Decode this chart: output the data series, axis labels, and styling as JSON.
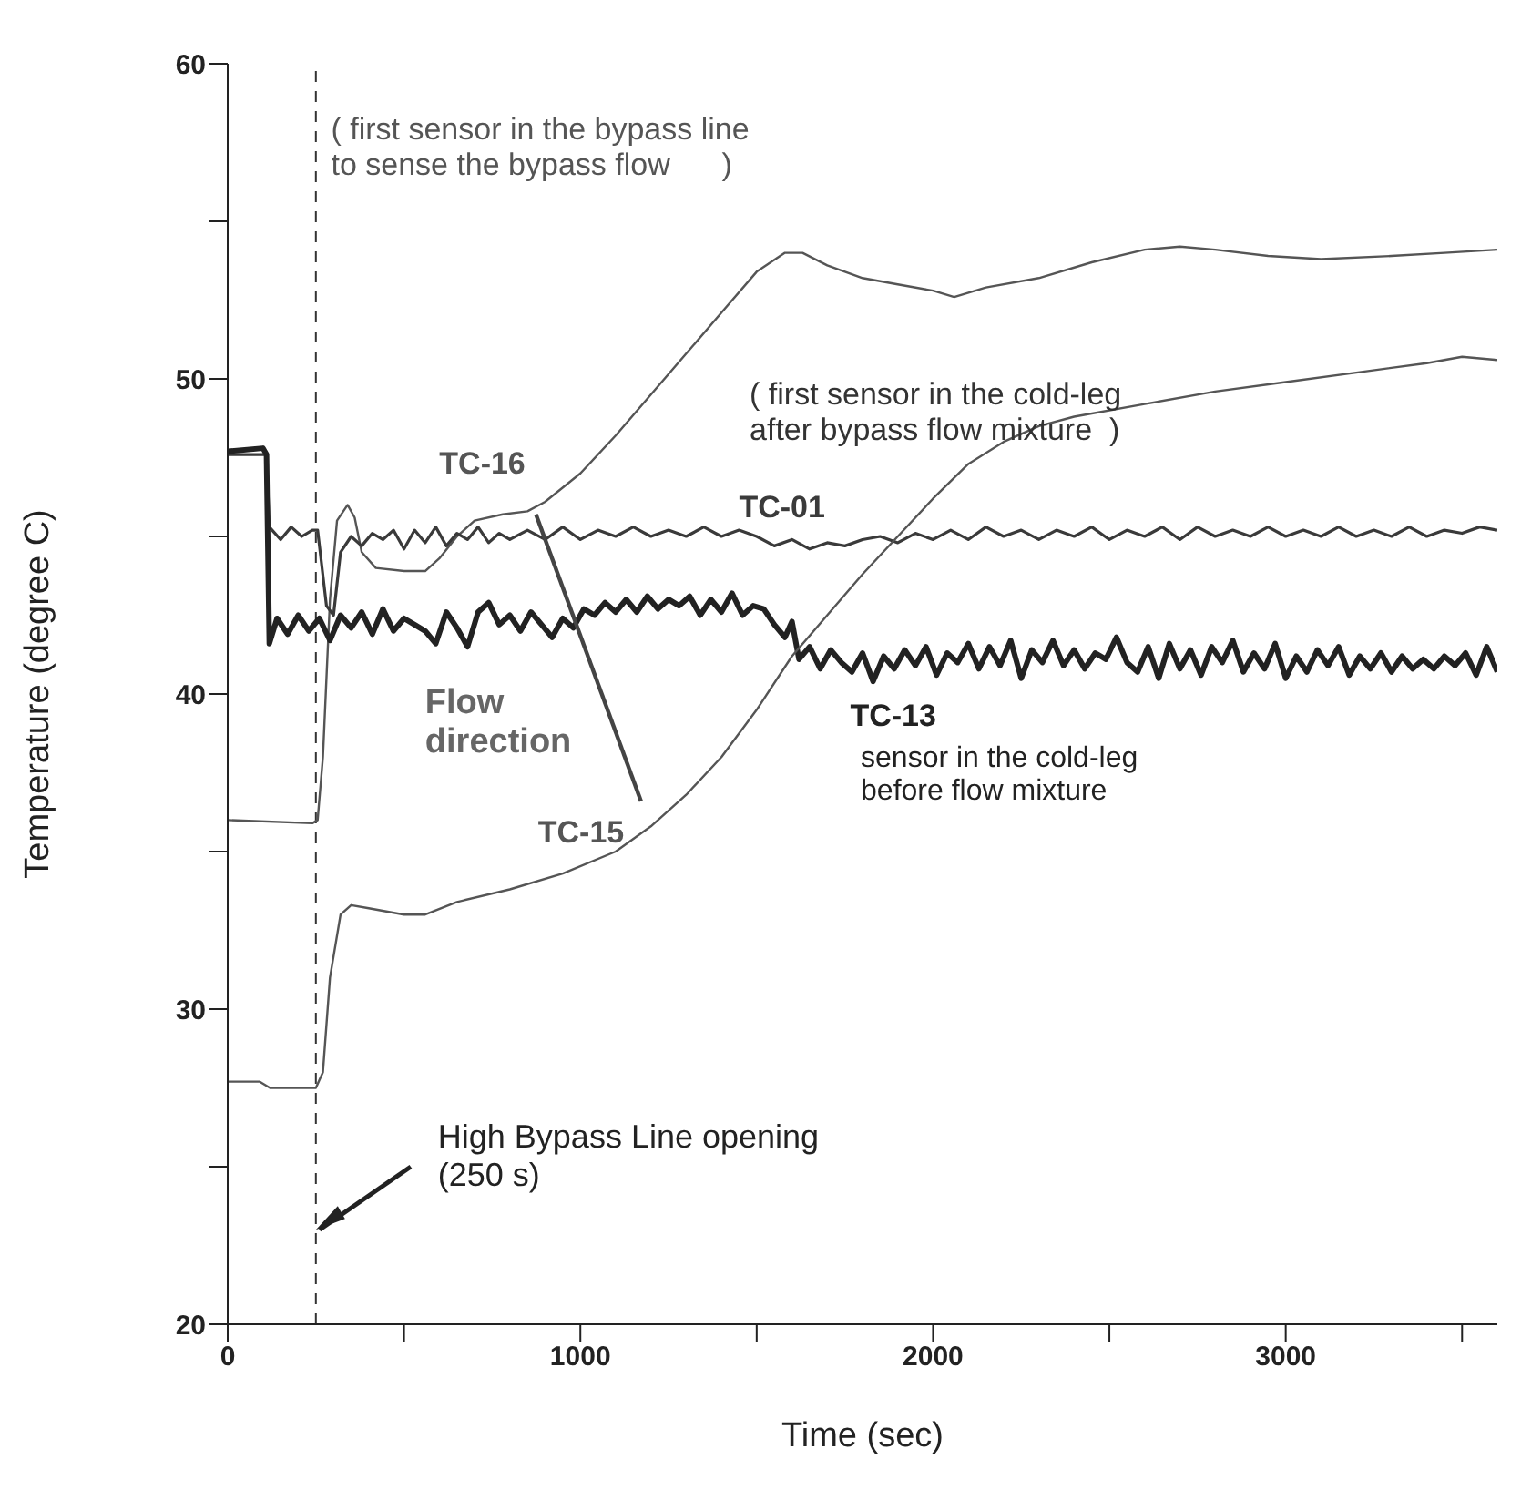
{
  "chart_data": {
    "type": "line",
    "xlabel": "Time (sec)",
    "ylabel": "Temperature (degree C)",
    "xlim": [
      0,
      3600
    ],
    "xticks": [
      0,
      {
        "value": 500,
        "label": null
      },
      1000,
      {
        "value": 1500,
        "label": null
      },
      2000,
      {
        "value": 2500,
        "label": null
      },
      3000,
      {
        "value": 3500,
        "label": null
      }
    ],
    "ylim": [
      20,
      60
    ],
    "yticks": [
      20,
      {
        "value": 25,
        "label": null
      },
      30,
      {
        "value": 35,
        "label": null
      },
      40,
      {
        "value": 45,
        "label": null
      },
      50,
      {
        "value": 55,
        "label": null
      },
      60
    ],
    "marker": "none",
    "line_style": "solid",
    "series": [
      {
        "name": "TC-16",
        "color": "#555555",
        "x": [
          0,
          240,
          255,
          270,
          290,
          310,
          340,
          360,
          380,
          420,
          500,
          560,
          600,
          650,
          700,
          780,
          850,
          900,
          1000,
          1100,
          1200,
          1300,
          1400,
          1500,
          1580,
          1630,
          1700,
          1800,
          1900,
          2000,
          2060,
          2150,
          2300,
          2450,
          2600,
          2700,
          2800,
          2950,
          3100,
          3300,
          3450,
          3600
        ],
        "values": [
          36.0,
          35.9,
          36.0,
          38,
          43,
          45.5,
          46.0,
          45.6,
          44.5,
          44.0,
          43.9,
          43.9,
          44.3,
          45.0,
          45.5,
          45.7,
          45.8,
          46.1,
          47.0,
          48.2,
          49.5,
          50.8,
          52.1,
          53.4,
          54.0,
          54.0,
          53.6,
          53.2,
          53.0,
          52.8,
          52.6,
          52.9,
          53.2,
          53.7,
          54.1,
          54.2,
          54.1,
          53.9,
          53.8,
          53.9,
          54.0,
          54.1
        ]
      },
      {
        "name": "TC-01",
        "color": "#3a3a3a",
        "x": [
          0,
          110,
          118,
          150,
          180,
          210,
          240,
          255,
          280,
          300,
          320,
          350,
          380,
          410,
          440,
          470,
          500,
          530,
          560,
          590,
          620,
          650,
          680,
          710,
          740,
          770,
          800,
          850,
          900,
          950,
          1000,
          1050,
          1100,
          1150,
          1200,
          1250,
          1300,
          1350,
          1400,
          1450,
          1500,
          1550,
          1600,
          1650,
          1700,
          1750,
          1800,
          1850,
          1900,
          1950,
          2000,
          2050,
          2100,
          2150,
          2200,
          2250,
          2300,
          2350,
          2400,
          2450,
          2500,
          2550,
          2600,
          2650,
          2700,
          2750,
          2800,
          2850,
          2900,
          2950,
          3000,
          3050,
          3100,
          3150,
          3200,
          3250,
          3300,
          3350,
          3400,
          3450,
          3500,
          3550,
          3600
        ],
        "values": [
          47.6,
          47.6,
          45.3,
          44.9,
          45.3,
          45.0,
          45.2,
          45.2,
          42.8,
          42.5,
          44.5,
          45.0,
          44.7,
          45.1,
          44.9,
          45.2,
          44.6,
          45.2,
          44.8,
          45.3,
          44.7,
          45.1,
          44.9,
          45.3,
          44.8,
          45.1,
          44.9,
          45.2,
          44.9,
          45.3,
          44.9,
          45.2,
          45.0,
          45.3,
          45.0,
          45.2,
          45.0,
          45.3,
          45.0,
          45.2,
          45.0,
          44.7,
          44.9,
          44.6,
          44.8,
          44.7,
          44.9,
          45.0,
          44.8,
          45.1,
          44.9,
          45.2,
          44.9,
          45.3,
          45.0,
          45.2,
          44.9,
          45.2,
          45.0,
          45.3,
          44.9,
          45.2,
          45.0,
          45.3,
          44.9,
          45.3,
          45.0,
          45.2,
          45.0,
          45.3,
          45.0,
          45.2,
          45.0,
          45.3,
          45.0,
          45.2,
          45.0,
          45.3,
          45.0,
          45.2,
          45.1,
          45.3,
          45.2
        ]
      },
      {
        "name": "TC-13",
        "color": "#222222",
        "x": [
          0,
          100,
          110,
          118,
          140,
          170,
          200,
          230,
          260,
          290,
          320,
          350,
          380,
          410,
          440,
          470,
          500,
          530,
          560,
          590,
          620,
          650,
          680,
          710,
          740,
          770,
          800,
          830,
          860,
          890,
          920,
          950,
          980,
          1010,
          1040,
          1070,
          1100,
          1130,
          1160,
          1190,
          1220,
          1250,
          1280,
          1310,
          1340,
          1370,
          1400,
          1430,
          1460,
          1490,
          1520,
          1550,
          1580,
          1600,
          1620,
          1650,
          1680,
          1710,
          1740,
          1770,
          1800,
          1830,
          1860,
          1890,
          1920,
          1950,
          1980,
          2010,
          2040,
          2070,
          2100,
          2130,
          2160,
          2190,
          2220,
          2250,
          2280,
          2310,
          2340,
          2370,
          2400,
          2430,
          2460,
          2490,
          2520,
          2550,
          2580,
          2610,
          2640,
          2670,
          2700,
          2730,
          2760,
          2790,
          2820,
          2850,
          2880,
          2910,
          2940,
          2970,
          3000,
          3030,
          3060,
          3090,
          3120,
          3150,
          3180,
          3210,
          3240,
          3270,
          3300,
          3330,
          3360,
          3390,
          3420,
          3450,
          3480,
          3510,
          3540,
          3570,
          3600
        ],
        "values": [
          47.7,
          47.8,
          47.6,
          41.6,
          42.4,
          41.9,
          42.5,
          42.0,
          42.4,
          41.7,
          42.5,
          42.1,
          42.6,
          41.9,
          42.7,
          42.0,
          42.4,
          42.2,
          42.0,
          41.6,
          42.6,
          42.1,
          41.5,
          42.6,
          42.9,
          42.2,
          42.5,
          42.0,
          42.6,
          42.2,
          41.8,
          42.4,
          42.1,
          42.7,
          42.5,
          42.9,
          42.6,
          43.0,
          42.6,
          43.1,
          42.7,
          43.0,
          42.8,
          43.1,
          42.5,
          43.0,
          42.6,
          43.2,
          42.5,
          42.8,
          42.7,
          42.2,
          41.8,
          42.3,
          41.1,
          41.5,
          40.8,
          41.4,
          41.0,
          40.7,
          41.3,
          40.4,
          41.2,
          40.8,
          41.4,
          40.9,
          41.5,
          40.6,
          41.3,
          41.0,
          41.6,
          40.8,
          41.5,
          40.9,
          41.7,
          40.5,
          41.4,
          41.0,
          41.7,
          40.9,
          41.4,
          40.8,
          41.3,
          41.1,
          41.8,
          41.0,
          40.7,
          41.5,
          40.5,
          41.6,
          40.8,
          41.4,
          40.6,
          41.5,
          41.0,
          41.7,
          40.7,
          41.3,
          40.8,
          41.6,
          40.5,
          41.2,
          40.7,
          41.4,
          40.9,
          41.5,
          40.6,
          41.2,
          40.8,
          41.3,
          40.7,
          41.2,
          40.8,
          41.1,
          40.8,
          41.2,
          40.9,
          41.3,
          40.6,
          41.5,
          40.7
        ]
      },
      {
        "name": "TC-15",
        "color": "#555555",
        "x": [
          0,
          90,
          120,
          250,
          270,
          290,
          320,
          350,
          400,
          500,
          560,
          650,
          800,
          950,
          1100,
          1200,
          1300,
          1400,
          1500,
          1600,
          1700,
          1800,
          1900,
          2000,
          2100,
          2200,
          2300,
          2400,
          2600,
          2800,
          3000,
          3200,
          3400,
          3500,
          3600
        ],
        "values": [
          27.7,
          27.7,
          27.5,
          27.5,
          28,
          31,
          33.0,
          33.3,
          33.2,
          33.0,
          33.0,
          33.4,
          33.8,
          34.3,
          35.0,
          35.8,
          36.8,
          38.0,
          39.5,
          41.2,
          42.5,
          43.8,
          45.0,
          46.2,
          47.3,
          48.0,
          48.5,
          48.8,
          49.2,
          49.6,
          49.9,
          50.2,
          50.5,
          50.7,
          50.6
        ]
      }
    ],
    "ref_lines": [
      {
        "axis": "x",
        "value": 250,
        "label": "High Bypass Line opening\n(250 s)",
        "color": "#333333",
        "line_style": "dashed"
      }
    ],
    "annotations": [
      "( first sensor in the bypass line\nto sense the bypass flow      )",
      "( first sensor in the cold-leg\nafter bypass flow mixture  )",
      "sensor in the cold-leg\nbefore flow mixture",
      "Flow\ndirection"
    ]
  }
}
